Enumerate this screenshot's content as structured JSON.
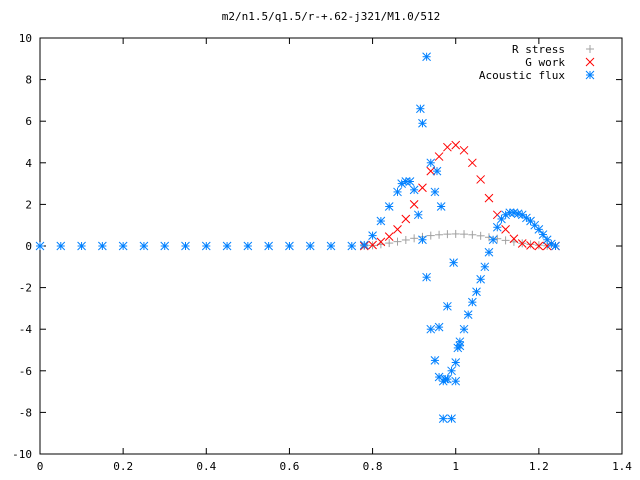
{
  "chart_data": {
    "type": "scatter",
    "title": "m2/n1.5/q1.5/r-+.62-j321/M1.0/512",
    "xlabel": "",
    "ylabel": "",
    "xlim": [
      0,
      1.4
    ],
    "ylim": [
      -10,
      10
    ],
    "xticks": [
      0,
      0.2,
      0.4,
      0.6,
      0.8,
      1,
      1.2,
      1.4
    ],
    "xtick_labels": [
      "0",
      "0.2",
      "0.4",
      "0.6",
      "0.8",
      "1",
      "1.2",
      "1.4"
    ],
    "yticks": [
      -10,
      -8,
      -6,
      -4,
      -2,
      0,
      2,
      4,
      6,
      8,
      10
    ],
    "ytick_labels": [
      "-10",
      "-8",
      "-6",
      "-4",
      "-2",
      "0",
      "2",
      "4",
      "6",
      "8",
      "10"
    ],
    "grid": false,
    "legend_position": "top-right",
    "series": [
      {
        "name": "R stress",
        "marker": "plus",
        "color": "#a0a0a0",
        "x": [
          0.78,
          0.8,
          0.82,
          0.84,
          0.86,
          0.88,
          0.9,
          0.92,
          0.94,
          0.96,
          0.98,
          1.0,
          1.02,
          1.04,
          1.06,
          1.08,
          1.1,
          1.12,
          1.14,
          1.16,
          1.18,
          1.2,
          1.22,
          1.24
        ],
        "y": [
          0.0,
          0.03,
          0.08,
          0.14,
          0.21,
          0.29,
          0.37,
          0.44,
          0.5,
          0.54,
          0.57,
          0.58,
          0.57,
          0.54,
          0.49,
          0.42,
          0.35,
          0.27,
          0.2,
          0.13,
          0.08,
          0.04,
          0.01,
          0.0
        ]
      },
      {
        "name": "G work",
        "marker": "cross",
        "color": "#ff0000",
        "x": [
          0.78,
          0.8,
          0.82,
          0.84,
          0.86,
          0.88,
          0.9,
          0.92,
          0.94,
          0.96,
          0.98,
          1.0,
          1.02,
          1.04,
          1.06,
          1.08,
          1.1,
          1.12,
          1.14,
          1.16,
          1.18,
          1.2,
          1.22,
          1.24
        ],
        "y": [
          0.0,
          0.05,
          0.2,
          0.45,
          0.8,
          1.3,
          2.0,
          2.8,
          3.6,
          4.3,
          4.75,
          4.85,
          4.6,
          4.0,
          3.2,
          2.3,
          1.5,
          0.8,
          0.35,
          0.12,
          0.03,
          0.0,
          0.0,
          0.0
        ]
      },
      {
        "name": "Acoustic flux",
        "marker": "star",
        "color": "#0080ff",
        "x": [
          0.0,
          0.05,
          0.1,
          0.15,
          0.2,
          0.25,
          0.3,
          0.35,
          0.4,
          0.45,
          0.5,
          0.55,
          0.6,
          0.65,
          0.7,
          0.75,
          0.78,
          0.8,
          0.82,
          0.84,
          0.86,
          0.87,
          0.88,
          0.89,
          0.9,
          0.91,
          0.92,
          0.93,
          0.94,
          0.95,
          0.96,
          0.97,
          0.98,
          0.99,
          1.0,
          1.01,
          1.02,
          1.03,
          1.04,
          1.05,
          1.06,
          1.07,
          1.08,
          1.09,
          1.1,
          1.11,
          1.12,
          1.13,
          1.14,
          1.15,
          1.16,
          1.17,
          1.18,
          1.19,
          1.2,
          1.21,
          1.22,
          1.23,
          1.24,
          0.915,
          0.92,
          0.93,
          0.94,
          0.95,
          0.955,
          0.965,
          0.97,
          0.975,
          0.99,
          1.0,
          1.005,
          1.01,
          0.96,
          0.98,
          0.995
        ],
        "y": [
          0.0,
          0.0,
          0.0,
          0.0,
          0.0,
          0.0,
          0.0,
          0.0,
          0.0,
          0.0,
          0.0,
          0.0,
          0.0,
          0.0,
          0.0,
          0.0,
          0.05,
          0.5,
          1.2,
          1.9,
          2.6,
          3.0,
          3.1,
          3.1,
          2.7,
          1.5,
          0.3,
          -1.5,
          -4.0,
          -5.5,
          -6.3,
          -6.5,
          -6.4,
          -6.0,
          -5.6,
          -4.8,
          -4.0,
          -3.3,
          -2.7,
          -2.2,
          -1.6,
          -1.0,
          -0.3,
          0.3,
          0.9,
          1.3,
          1.5,
          1.6,
          1.6,
          1.55,
          1.5,
          1.35,
          1.2,
          1.0,
          0.8,
          0.55,
          0.3,
          0.1,
          0.0,
          6.6,
          5.9,
          9.1,
          4.0,
          2.6,
          3.6,
          1.9,
          -8.3,
          -6.4,
          -8.3,
          -6.5,
          -4.9,
          -4.6,
          -3.9,
          -2.9,
          -0.8
        ]
      }
    ]
  }
}
